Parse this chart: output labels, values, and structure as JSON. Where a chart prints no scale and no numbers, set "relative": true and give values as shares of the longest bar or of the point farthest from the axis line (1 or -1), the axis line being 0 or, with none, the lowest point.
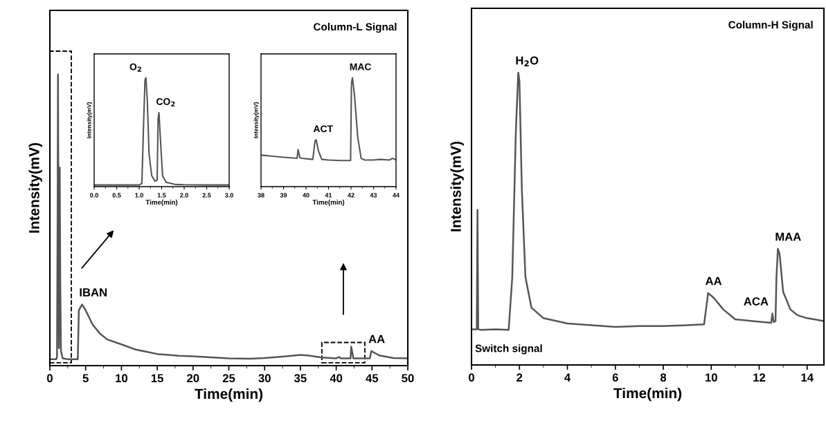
{
  "chart_data": [
    {
      "type": "line",
      "relative": true,
      "xlabel": "Time(min)",
      "ylabel": "Intensity(mV)",
      "xlim": [
        0,
        50
      ],
      "xticks": [
        0,
        5,
        10,
        15,
        20,
        25,
        30,
        35,
        40,
        45,
        50
      ],
      "tick_labels": "x",
      "series": [
        {
          "color": "#555555",
          "x": [
            0,
            0.9,
            1.0,
            1.08,
            1.14,
            1.2,
            1.27,
            1.32,
            1.38,
            1.45,
            1.55,
            1.8,
            2.5,
            3.9,
            4.05,
            4.5,
            5,
            6,
            7,
            8,
            10,
            12,
            15,
            18,
            20,
            25,
            28,
            30,
            33,
            35,
            36,
            38,
            40,
            40.4,
            40.6,
            42.0,
            42.1,
            42.4,
            44.7,
            44.9,
            46,
            48,
            50
          ],
          "values": [
            0.022,
            0.022,
            0.03,
            0.5,
            1.0,
            0.5,
            0.06,
            0.3,
            0.68,
            0.3,
            0.05,
            0.025,
            0.022,
            0.022,
            0.19,
            0.21,
            0.19,
            0.14,
            0.11,
            0.09,
            0.073,
            0.055,
            0.04,
            0.034,
            0.032,
            0.025,
            0.024,
            0.026,
            0.032,
            0.037,
            0.035,
            0.028,
            0.025,
            0.03,
            0.025,
            0.025,
            0.065,
            0.025,
            0.025,
            0.05,
            0.035,
            0.026,
            0.025
          ]
        }
      ],
      "annotations": [
        "Column-L Signal",
        {
          "text": "IBAN",
          "x": 4.5,
          "y": 0.21
        },
        {
          "text": "AA",
          "x": 44.9,
          "y": 0.05
        }
      ]
    },
    {
      "type": "line",
      "relative": true,
      "xlabel": "Time(min)",
      "ylabel": "Intensity(mV)",
      "xlim": [
        0,
        3
      ],
      "xticks": [
        {
          "value": 0,
          "label": "0.0"
        },
        {
          "value": 0.5,
          "label": "0.5"
        },
        {
          "value": 1,
          "label": "1.0"
        },
        {
          "value": 1.5,
          "label": "1.5"
        },
        {
          "value": 2,
          "label": "2.0"
        },
        {
          "value": 2.5,
          "label": "2.5"
        },
        {
          "value": 3,
          "label": "3.0"
        }
      ],
      "tick_labels": "x",
      "series": [
        {
          "color": "#555555",
          "x": [
            0,
            0.5,
            1.0,
            1.06,
            1.1,
            1.13,
            1.15,
            1.18,
            1.22,
            1.28,
            1.35,
            1.4,
            1.42,
            1.44,
            1.47,
            1.52,
            1.6,
            1.8,
            2.0,
            2.5,
            3.0
          ],
          "values": [
            0.015,
            0.015,
            0.015,
            0.03,
            0.6,
            0.98,
            1.0,
            0.8,
            0.3,
            0.1,
            0.05,
            0.06,
            0.62,
            0.68,
            0.45,
            0.1,
            0.04,
            0.02,
            0.017,
            0.015,
            0.015
          ]
        }
      ],
      "annotations": [
        {
          "text": "O$_{2}$",
          "x": 1.15,
          "y": 1.0
        },
        {
          "text": "CO$_{2}$",
          "x": 1.44,
          "y": 0.68
        }
      ]
    },
    {
      "type": "line",
      "relative": true,
      "xlabel": "Time(min)",
      "ylabel": "Intensity(mV)",
      "xlim": [
        38,
        44
      ],
      "xticks": [
        38,
        39,
        40,
        41,
        42,
        43,
        44
      ],
      "tick_labels": "x",
      "series": [
        {
          "color": "#555555",
          "x": [
            38,
            38.5,
            39,
            39.6,
            39.65,
            39.72,
            39.8,
            40.3,
            40.4,
            40.45,
            40.55,
            40.7,
            41,
            41.5,
            41.98,
            42.02,
            42.06,
            42.15,
            42.3,
            42.45,
            42.6,
            43,
            43.3,
            43.7,
            43.85,
            44
          ],
          "values": [
            0.29,
            0.28,
            0.27,
            0.26,
            0.34,
            0.27,
            0.26,
            0.25,
            0.42,
            0.43,
            0.33,
            0.25,
            0.245,
            0.24,
            0.24,
            0.95,
            1.0,
            0.85,
            0.45,
            0.26,
            0.245,
            0.245,
            0.25,
            0.245,
            0.26,
            0.245
          ]
        }
      ],
      "annotations": [
        {
          "text": "ACT",
          "x": 40.45,
          "y": 0.43
        },
        {
          "text": "MAC",
          "x": 42.06,
          "y": 1.0
        }
      ]
    },
    {
      "type": "line",
      "relative": true,
      "xlabel": "Time(min)",
      "ylabel": "Intensity(mV)",
      "xlim": [
        0,
        14.7
      ],
      "xticks": [
        0,
        2,
        4,
        6,
        8,
        10,
        12,
        14
      ],
      "tick_labels": "x",
      "series": [
        {
          "color": "#555555",
          "x": [
            0,
            0.22,
            0.25,
            0.28,
            0.4,
            1.0,
            1.55,
            1.7,
            1.85,
            1.95,
            2.0,
            2.1,
            2.25,
            2.5,
            3,
            4,
            5,
            6,
            7,
            8,
            9,
            9.7,
            9.8,
            9.87,
            10.1,
            10.5,
            11,
            12,
            12.5,
            12.55,
            12.6,
            12.68,
            12.72,
            12.78,
            12.85,
            13.0,
            13.3,
            13.6,
            14,
            14.7
          ],
          "values": [
            0.122,
            0.122,
            0.53,
            0.122,
            0.12,
            0.122,
            0.12,
            0.3,
            0.8,
            1.0,
            0.97,
            0.6,
            0.3,
            0.196,
            0.16,
            0.142,
            0.136,
            0.13,
            0.133,
            0.133,
            0.136,
            0.139,
            0.2,
            0.246,
            0.23,
            0.19,
            0.156,
            0.148,
            0.144,
            0.176,
            0.147,
            0.15,
            0.3,
            0.397,
            0.38,
            0.25,
            0.19,
            0.17,
            0.16,
            0.15
          ]
        }
      ],
      "annotations": [
        "Column-H Signal",
        "Switch signal",
        {
          "text": "H$_{2}$O",
          "x": 1.95,
          "y": 1.0
        },
        {
          "text": "AA",
          "x": 9.87,
          "y": 0.246
        },
        {
          "text": "ACA",
          "x": 12.55,
          "y": 0.176
        },
        {
          "text": "MAA",
          "x": 12.78,
          "y": 0.397
        }
      ]
    }
  ]
}
